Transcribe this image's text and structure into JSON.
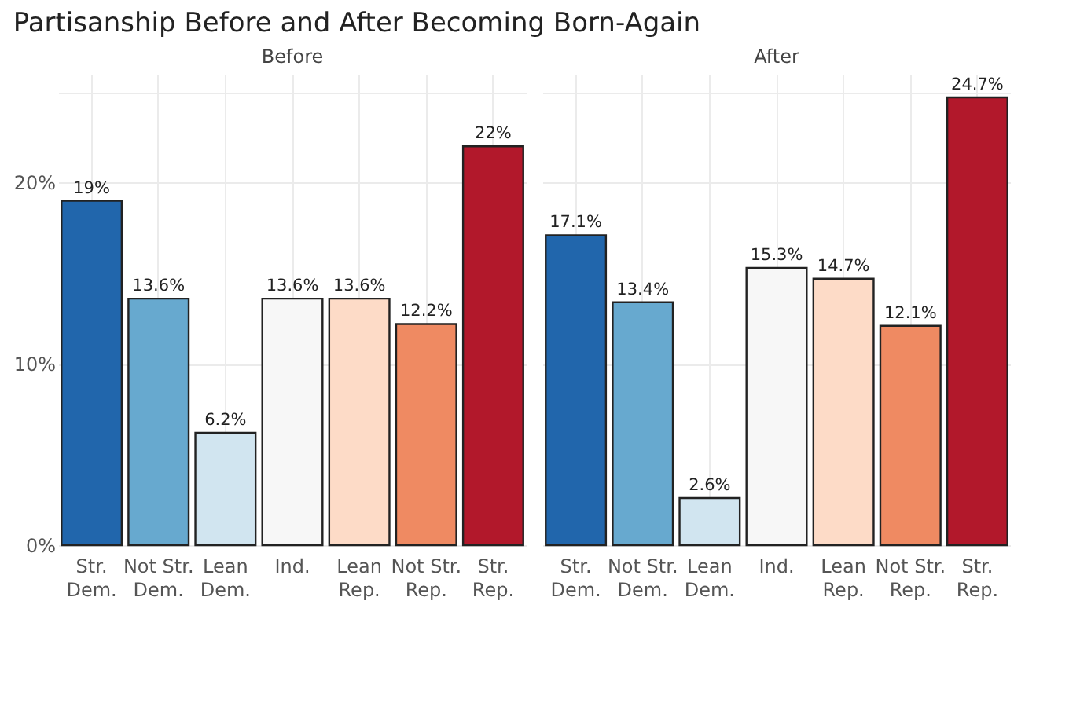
{
  "chart_data": [
    {
      "type": "bar",
      "title": "Partisanship Before and After Becoming Born-Again",
      "subtitle": "Before",
      "categories": [
        "Str. Dem.",
        "Not Str. Dem.",
        "Lean Dem.",
        "Ind.",
        "Lean Rep.",
        "Not Str. Rep.",
        "Str. Rep."
      ],
      "values": [
        19,
        13.6,
        6.2,
        13.6,
        13.6,
        12.2,
        22
      ],
      "value_labels": [
        "19%",
        "13.6%",
        "6.2%",
        "13.6%",
        "13.6%",
        "12.2%",
        "22%"
      ],
      "colors": [
        "#2166ac",
        "#67a9cf",
        "#d1e5f0",
        "#f7f7f7",
        "#fddbc7",
        "#ef8a62",
        "#b2182b"
      ],
      "ylim": [
        0,
        26
      ],
      "yticks": [
        {
          "value": 0,
          "label": "0%"
        },
        {
          "value": 10,
          "label": "10%"
        },
        {
          "value": 20,
          "label": "20%"
        },
        {
          "value": 25,
          "label": null
        }
      ],
      "grid": true
    },
    {
      "type": "bar",
      "subtitle": "After",
      "categories": [
        "Str. Dem.",
        "Not Str. Dem.",
        "Lean Dem.",
        "Ind.",
        "Lean Rep.",
        "Not Str. Rep.",
        "Str. Rep."
      ],
      "values": [
        17.1,
        13.4,
        2.6,
        15.3,
        14.7,
        12.1,
        24.7
      ],
      "value_labels": [
        "17.1%",
        "13.4%",
        "2.6%",
        "15.3%",
        "14.7%",
        "12.1%",
        "24.7%"
      ],
      "colors": [
        "#2166ac",
        "#67a9cf",
        "#d1e5f0",
        "#f7f7f7",
        "#fddbc7",
        "#ef8a62",
        "#b2182b"
      ],
      "ylim": [
        0,
        26
      ],
      "yticks": [
        0,
        10,
        20,
        25
      ],
      "grid": true,
      "tick_labels": "x"
    }
  ]
}
